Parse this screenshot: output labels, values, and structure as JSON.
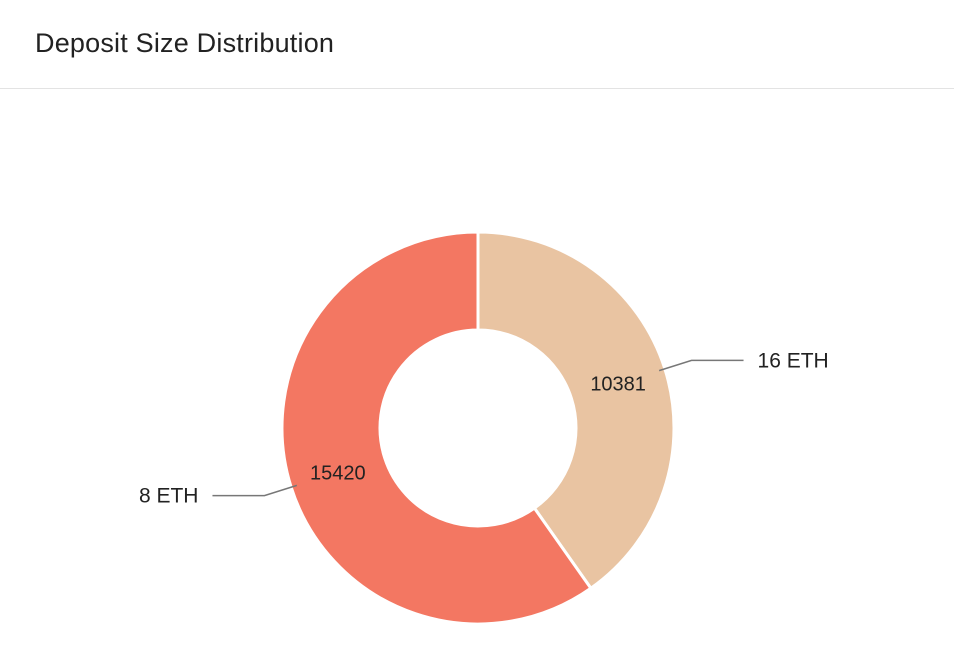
{
  "header": {
    "title": "Deposit Size Distribution"
  },
  "chart_data": {
    "type": "pie",
    "variant": "donut",
    "title": "Deposit Size Distribution",
    "categories": [
      "16 ETH",
      "8 ETH"
    ],
    "values": [
      10381,
      15420
    ],
    "colors": [
      "#e9c4a2",
      "#f37762"
    ],
    "legend": "none",
    "labels_shown": "values-inside, categories-outside"
  }
}
